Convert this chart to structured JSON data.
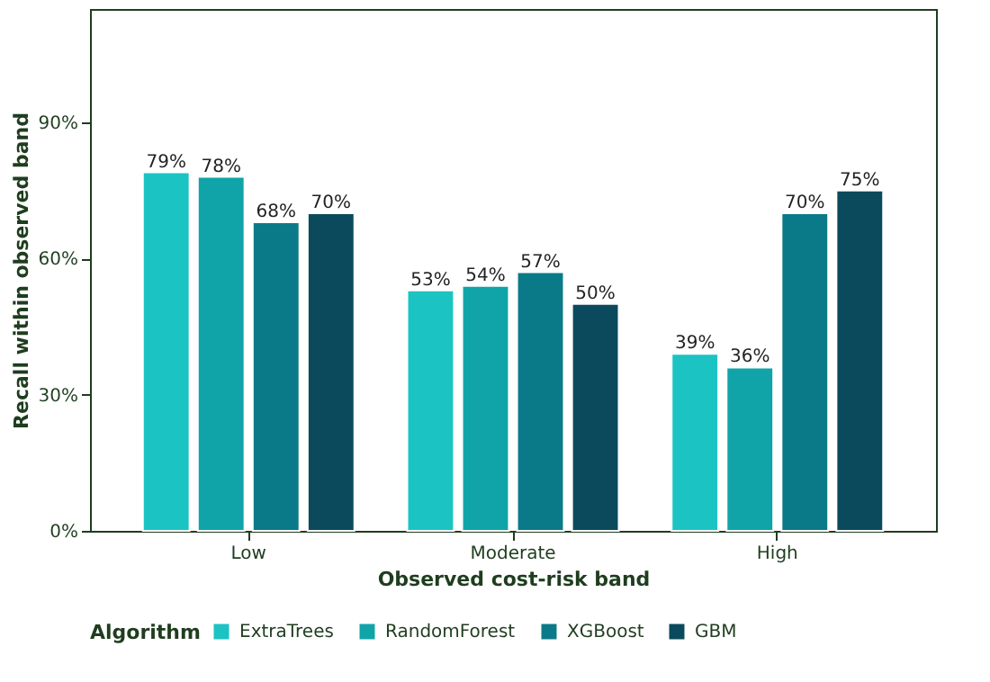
{
  "chart_data": {
    "type": "bar",
    "xlabel": "Observed cost-risk band",
    "ylabel": "Recall within observed band",
    "legend_title": "Algorithm",
    "categories": [
      "Low",
      "Moderate",
      "High"
    ],
    "series": [
      {
        "name": "ExtraTrees",
        "color": "#1cc3c3",
        "values": [
          79,
          53,
          39
        ],
        "value_labels": [
          "79%",
          "53%",
          "39%"
        ]
      },
      {
        "name": "RandomForest",
        "color": "#10a4a8",
        "values": [
          78,
          54,
          36
        ],
        "value_labels": [
          "78%",
          "54%",
          "36%"
        ]
      },
      {
        "name": "XGBoost",
        "color": "#0b7a88",
        "values": [
          68,
          57,
          70
        ],
        "value_labels": [
          "68%",
          "57%",
          "70%"
        ]
      },
      {
        "name": "GBM",
        "color": "#0a4a5c",
        "values": [
          70,
          50,
          75
        ],
        "value_labels": [
          "70%",
          "50%",
          "75%"
        ]
      }
    ],
    "ylim": [
      0,
      115
    ],
    "yticks": [
      {
        "value": 0,
        "label": "0%"
      },
      {
        "value": 30,
        "label": "30%"
      },
      {
        "value": 60,
        "label": "60%"
      },
      {
        "value": 90,
        "label": "90%"
      }
    ],
    "grid": false,
    "legend": "bottom"
  }
}
